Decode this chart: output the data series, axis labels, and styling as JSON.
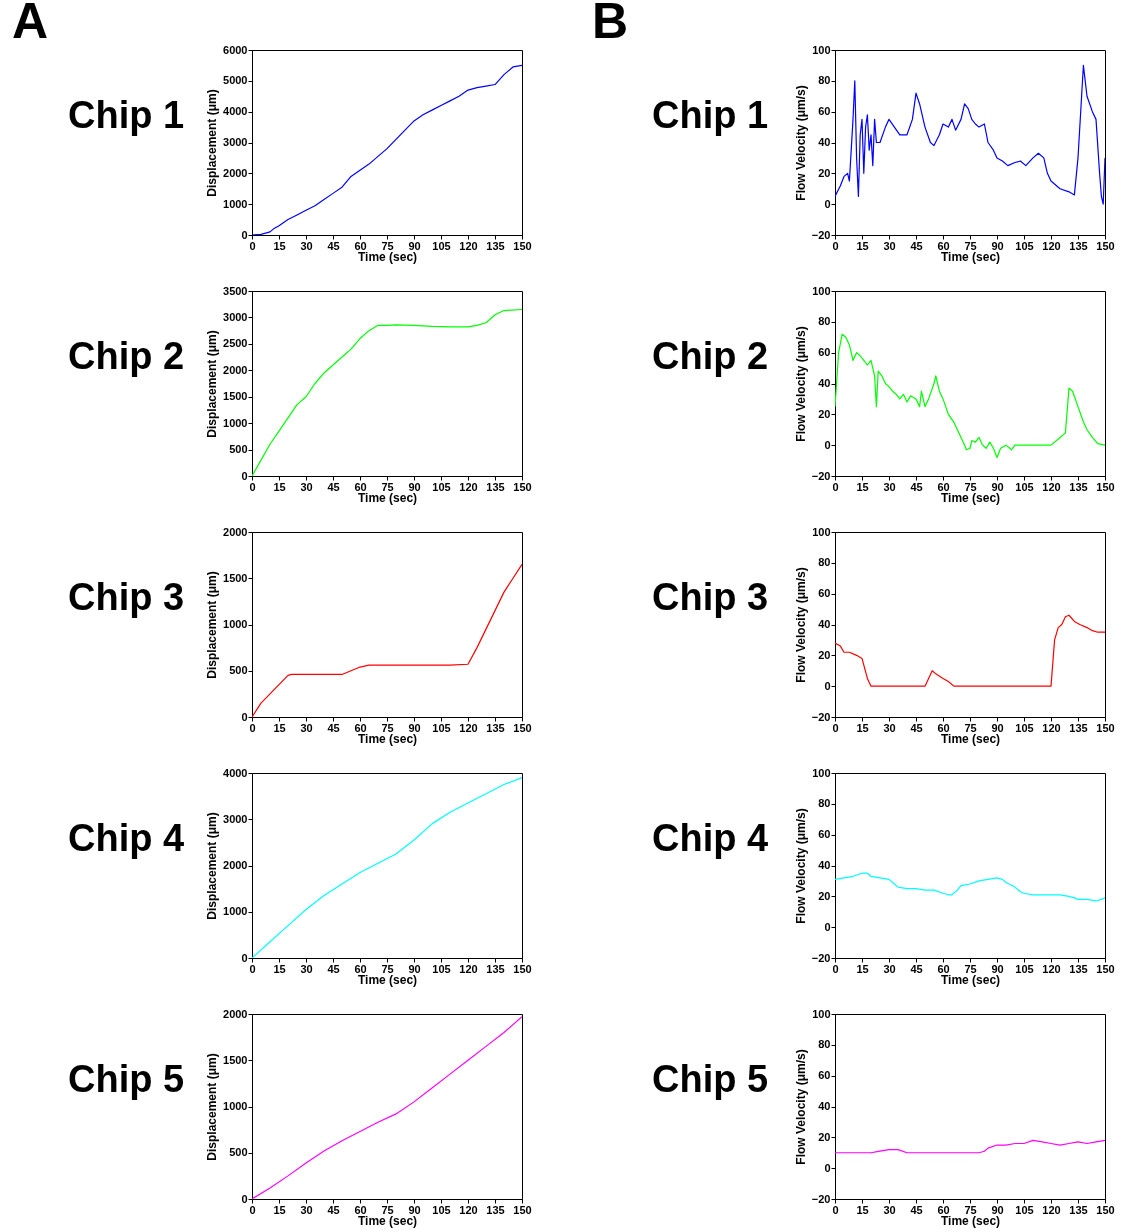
{
  "chart_data": [
    {
      "type": "line",
      "title": "Chip 1",
      "annotations": [
        "A"
      ],
      "xlabel": "Time (sec)",
      "ylabel": "Displacement (μm)",
      "color": "#0000ff",
      "grid": false,
      "xlim": [
        0,
        150
      ],
      "xticks": [
        0,
        15,
        30,
        45,
        60,
        75,
        90,
        105,
        120,
        135,
        150
      ],
      "ylim": [
        0,
        6000
      ],
      "yticks": [
        0,
        1000,
        2000,
        3000,
        4000,
        5000,
        6000
      ],
      "x": [
        0,
        5,
        10,
        12,
        15,
        20,
        25,
        30,
        35,
        40,
        45,
        50,
        55,
        60,
        65,
        70,
        75,
        80,
        85,
        90,
        95,
        100,
        105,
        110,
        115,
        120,
        125,
        130,
        135,
        140,
        145,
        150
      ],
      "values": [
        0,
        20,
        100,
        200,
        300,
        500,
        650,
        800,
        950,
        1150,
        1350,
        1550,
        1900,
        2100,
        2300,
        2550,
        2800,
        3100,
        3400,
        3700,
        3900,
        4050,
        4200,
        4350,
        4500,
        4700,
        4780,
        4830,
        4880,
        5200,
        5450,
        5500
      ]
    },
    {
      "type": "line",
      "title": "Chip 1",
      "annotations": [
        "B"
      ],
      "xlabel": "Time (sec)",
      "ylabel": "Flow Velocity (μm/s)",
      "color": "#0000ff",
      "grid": false,
      "xlim": [
        0,
        150
      ],
      "xticks": [
        0,
        15,
        30,
        45,
        60,
        75,
        90,
        105,
        120,
        135,
        150
      ],
      "ylim": [
        -20,
        100
      ],
      "yticks": [
        -20,
        0,
        20,
        40,
        60,
        80,
        100
      ],
      "x": [
        0,
        3,
        5,
        7,
        8,
        10,
        11,
        12,
        13,
        14,
        15,
        16,
        17,
        18,
        19,
        20,
        21,
        22,
        23,
        25,
        28,
        30,
        33,
        36,
        40,
        43,
        45,
        47,
        50,
        53,
        55,
        58,
        60,
        63,
        65,
        67,
        70,
        72,
        74,
        76,
        78,
        80,
        83,
        85,
        88,
        90,
        93,
        96,
        100,
        103,
        106,
        110,
        113,
        116,
        118,
        120,
        125,
        130,
        133,
        135,
        137,
        138,
        140,
        143,
        145,
        147,
        148,
        149,
        150
      ],
      "values": [
        5,
        12,
        18,
        20,
        15,
        55,
        80,
        30,
        5,
        45,
        55,
        20,
        50,
        58,
        35,
        45,
        25,
        55,
        40,
        40,
        50,
        55,
        50,
        45,
        45,
        55,
        72,
        65,
        50,
        40,
        38,
        45,
        52,
        50,
        55,
        48,
        55,
        65,
        62,
        55,
        52,
        50,
        52,
        40,
        35,
        30,
        28,
        25,
        27,
        28,
        25,
        30,
        33,
        30,
        20,
        15,
        10,
        8,
        6,
        30,
        70,
        90,
        70,
        60,
        55,
        20,
        5,
        0,
        30
      ]
    },
    {
      "type": "line",
      "title": "Chip 2",
      "xlabel": "Time (sec)",
      "ylabel": "Displacement (μm)",
      "color": "#00ff00",
      "grid": false,
      "xlim": [
        0,
        150
      ],
      "xticks": [
        0,
        15,
        30,
        45,
        60,
        75,
        90,
        105,
        120,
        135,
        150
      ],
      "ylim": [
        0,
        3500
      ],
      "yticks": [
        0,
        500,
        1000,
        1500,
        2000,
        2500,
        3000,
        3500
      ],
      "x": [
        0,
        5,
        10,
        15,
        20,
        25,
        30,
        35,
        40,
        45,
        50,
        55,
        60,
        65,
        70,
        75,
        80,
        90,
        100,
        110,
        120,
        125,
        130,
        135,
        140,
        150
      ],
      "values": [
        0,
        300,
        600,
        850,
        1100,
        1350,
        1500,
        1750,
        1950,
        2100,
        2250,
        2400,
        2600,
        2750,
        2850,
        2850,
        2860,
        2850,
        2830,
        2820,
        2820,
        2850,
        2900,
        3050,
        3130,
        3150
      ]
    },
    {
      "type": "line",
      "title": "Chip 2",
      "xlabel": "Time (sec)",
      "ylabel": "Flow Velocity (μm/s)",
      "color": "#00ff00",
      "grid": false,
      "xlim": [
        0,
        150
      ],
      "xticks": [
        0,
        15,
        30,
        45,
        60,
        75,
        90,
        105,
        120,
        135,
        150
      ],
      "ylim": [
        -20,
        100
      ],
      "yticks": [
        -20,
        0,
        20,
        40,
        60,
        80,
        100
      ],
      "x": [
        0,
        2,
        4,
        6,
        8,
        10,
        12,
        14,
        16,
        18,
        20,
        22,
        23,
        24,
        26,
        28,
        30,
        32,
        34,
        36,
        38,
        40,
        42,
        45,
        47,
        48,
        50,
        52,
        55,
        56,
        58,
        60,
        63,
        66,
        68,
        70,
        72,
        73,
        75,
        76,
        78,
        80,
        82,
        84,
        86,
        88,
        90,
        92,
        95,
        98,
        100,
        105,
        110,
        115,
        120,
        125,
        128,
        130,
        132,
        135,
        138,
        140,
        143,
        146,
        150
      ],
      "values": [
        25,
        60,
        72,
        70,
        65,
        55,
        60,
        58,
        55,
        52,
        55,
        45,
        25,
        48,
        45,
        40,
        38,
        35,
        33,
        30,
        33,
        28,
        32,
        30,
        25,
        35,
        25,
        30,
        40,
        45,
        35,
        30,
        20,
        15,
        10,
        5,
        0,
        -3,
        -2,
        3,
        2,
        5,
        0,
        -2,
        2,
        -2,
        -8,
        -2,
        0,
        -3,
        0,
        0,
        0,
        0,
        0,
        5,
        8,
        37,
        35,
        25,
        15,
        10,
        5,
        1,
        0
      ]
    },
    {
      "type": "line",
      "title": "Chip 3",
      "xlabel": "Time (sec)",
      "ylabel": "Displacement (μm)",
      "color": "#ff0000",
      "grid": false,
      "xlim": [
        0,
        150
      ],
      "xticks": [
        0,
        15,
        30,
        45,
        60,
        75,
        90,
        105,
        120,
        135,
        150
      ],
      "ylim": [
        0,
        2000
      ],
      "yticks": [
        0,
        500,
        1000,
        1500,
        2000
      ],
      "x": [
        0,
        5,
        10,
        15,
        20,
        22,
        30,
        40,
        50,
        55,
        60,
        65,
        70,
        80,
        90,
        100,
        110,
        120,
        125,
        130,
        135,
        140,
        145,
        150
      ],
      "values": [
        0,
        150,
        250,
        350,
        450,
        460,
        460,
        460,
        460,
        500,
        540,
        560,
        560,
        560,
        560,
        560,
        560,
        570,
        750,
        950,
        1150,
        1350,
        1500,
        1650
      ]
    },
    {
      "type": "line",
      "title": "Chip 3",
      "xlabel": "Time (sec)",
      "ylabel": "Flow Velocity (μm/s)",
      "color": "#ff0000",
      "grid": false,
      "xlim": [
        0,
        150
      ],
      "xticks": [
        0,
        15,
        30,
        45,
        60,
        75,
        90,
        105,
        120,
        135,
        150
      ],
      "ylim": [
        -20,
        100
      ],
      "yticks": [
        -20,
        0,
        20,
        40,
        60,
        80,
        100
      ],
      "x": [
        0,
        3,
        5,
        8,
        12,
        15,
        18,
        20,
        25,
        30,
        35,
        40,
        45,
        50,
        52,
        54,
        56,
        60,
        63,
        66,
        70,
        80,
        90,
        100,
        110,
        118,
        120,
        122,
        124,
        126,
        128,
        130,
        133,
        136,
        140,
        143,
        146,
        150
      ],
      "values": [
        28,
        26,
        22,
        22,
        20,
        18,
        5,
        0,
        0,
        0,
        0,
        0,
        0,
        0,
        5,
        10,
        8,
        5,
        3,
        0,
        0,
        0,
        0,
        0,
        0,
        0,
        0,
        30,
        38,
        40,
        45,
        46,
        42,
        40,
        38,
        36,
        35,
        35
      ]
    },
    {
      "type": "line",
      "title": "Chip 4",
      "xlabel": "Time (sec)",
      "ylabel": "Displacement (μm)",
      "color": "#00ffff",
      "grid": false,
      "xlim": [
        0,
        150
      ],
      "xticks": [
        0,
        15,
        30,
        45,
        60,
        75,
        90,
        105,
        120,
        135,
        150
      ],
      "ylim": [
        0,
        4000
      ],
      "yticks": [
        0,
        1000,
        2000,
        3000,
        4000
      ],
      "x": [
        0,
        10,
        20,
        30,
        40,
        50,
        60,
        70,
        80,
        90,
        100,
        110,
        120,
        130,
        140,
        150
      ],
      "values": [
        0,
        350,
        700,
        1050,
        1350,
        1600,
        1850,
        2050,
        2250,
        2550,
        2900,
        3150,
        3350,
        3550,
        3750,
        3900
      ]
    },
    {
      "type": "line",
      "title": "Chip 4",
      "xlabel": "Time (sec)",
      "ylabel": "Flow Velocity (μm/s)",
      "color": "#00ffff",
      "grid": false,
      "xlim": [
        0,
        150
      ],
      "xticks": [
        0,
        15,
        30,
        45,
        60,
        75,
        90,
        105,
        120,
        135,
        150
      ],
      "ylim": [
        -20,
        100
      ],
      "yticks": [
        -20,
        0,
        20,
        40,
        60,
        80,
        100
      ],
      "x": [
        0,
        5,
        10,
        15,
        18,
        20,
        25,
        30,
        33,
        35,
        40,
        45,
        50,
        55,
        60,
        63,
        65,
        68,
        70,
        75,
        80,
        85,
        90,
        93,
        95,
        100,
        103,
        105,
        110,
        115,
        120,
        125,
        130,
        133,
        135,
        140,
        145,
        148,
        150
      ],
      "values": [
        31,
        32,
        33,
        35,
        35,
        33,
        32,
        31,
        28,
        26,
        25,
        25,
        24,
        24,
        22,
        21,
        21,
        24,
        27,
        28,
        30,
        31,
        32,
        31,
        29,
        26,
        23,
        22,
        21,
        21,
        21,
        21,
        20,
        19,
        18,
        18,
        17,
        18,
        19
      ]
    },
    {
      "type": "line",
      "title": "Chip 5",
      "xlabel": "Time (sec)",
      "ylabel": "Displacement (μm)",
      "color": "#ff00ff",
      "grid": false,
      "xlim": [
        0,
        150
      ],
      "xticks": [
        0,
        15,
        30,
        45,
        60,
        75,
        90,
        105,
        120,
        135,
        150
      ],
      "ylim": [
        0,
        2000
      ],
      "yticks": [
        0,
        500,
        1000,
        1500,
        2000
      ],
      "x": [
        0,
        10,
        20,
        30,
        40,
        50,
        60,
        70,
        80,
        90,
        100,
        110,
        120,
        130,
        140,
        150
      ],
      "values": [
        0,
        120,
        250,
        390,
        520,
        630,
        730,
        830,
        920,
        1050,
        1200,
        1350,
        1500,
        1650,
        1800,
        1970
      ]
    },
    {
      "type": "line",
      "title": "Chip 5",
      "xlabel": "Time (sec)",
      "ylabel": "Flow Velocity (μm/s)",
      "color": "#ff00ff",
      "grid": false,
      "xlim": [
        0,
        150
      ],
      "xticks": [
        0,
        15,
        30,
        45,
        60,
        75,
        90,
        105,
        120,
        135,
        150
      ],
      "ylim": [
        -20,
        100
      ],
      "yticks": [
        -20,
        0,
        20,
        40,
        60,
        80,
        100
      ],
      "x": [
        0,
        10,
        20,
        25,
        30,
        35,
        40,
        50,
        60,
        70,
        80,
        83,
        85,
        90,
        95,
        100,
        105,
        110,
        115,
        120,
        125,
        130,
        135,
        140,
        145,
        150
      ],
      "values": [
        10,
        10,
        10,
        11,
        12,
        12,
        10,
        10,
        10,
        10,
        10,
        11,
        13,
        15,
        15,
        16,
        16,
        18,
        17,
        16,
        15,
        16,
        17,
        16,
        17,
        18
      ]
    }
  ]
}
